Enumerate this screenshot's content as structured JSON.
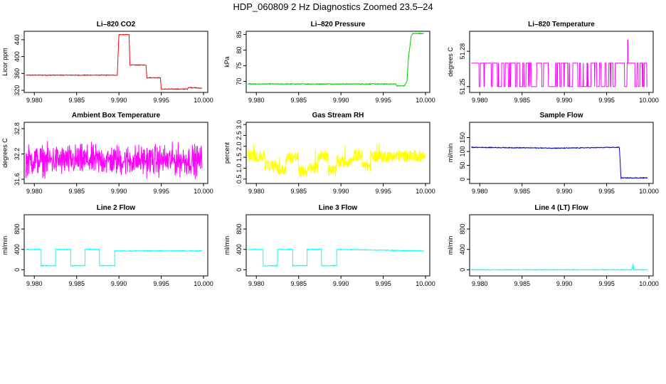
{
  "figure": {
    "title": "HDP_060809  2 Hz Diagnostics Zoomed 23.5–24"
  },
  "chart_data": [
    {
      "type": "line",
      "title": "Li–820 CO2",
      "ylabel": "Licor ppm",
      "color": "#ff0000",
      "xlim": [
        9.9788,
        10.0005
      ],
      "ylim": [
        315,
        460
      ],
      "xticks": [
        "9.980",
        "9.985",
        "9.990",
        "9.995",
        "10.000"
      ],
      "yticks": [
        "320",
        "360",
        "400",
        "440"
      ],
      "segments": [
        [
          9.979,
          356
        ],
        [
          9.9898,
          356
        ],
        [
          9.99,
          452
        ],
        [
          9.9912,
          452
        ],
        [
          9.9913,
          380
        ],
        [
          9.9932,
          380
        ],
        [
          9.9933,
          350
        ],
        [
          9.9949,
          350
        ],
        [
          9.995,
          323
        ],
        [
          9.9981,
          323
        ],
        [
          9.9982,
          327
        ],
        [
          9.9998,
          325
        ]
      ]
    },
    {
      "type": "line",
      "title": "Li–820 Pressure",
      "ylabel": "kPa",
      "color": "#00cc00",
      "xlim": [
        9.9788,
        10.0005
      ],
      "ylim": [
        66.5,
        86
      ],
      "xticks": [
        "9.980",
        "9.985",
        "9.990",
        "9.995",
        "10.000"
      ],
      "yticks": [
        "70",
        "75",
        "80",
        "85"
      ],
      "segments": [
        [
          9.979,
          69.2
        ],
        [
          9.9965,
          69.2
        ],
        [
          9.9966,
          68.6
        ],
        [
          9.9975,
          68.6
        ],
        [
          9.9978,
          70
        ],
        [
          9.998,
          78
        ],
        [
          9.9983,
          84.5
        ],
        [
          9.9985,
          85.3
        ],
        [
          9.9998,
          85.3
        ]
      ]
    },
    {
      "type": "line",
      "title": "Li–820 Temperature",
      "ylabel": "degrees C",
      "color": "#ff00ff",
      "xlim": [
        9.9788,
        10.0005
      ],
      "ylim": [
        51.245,
        51.297
      ],
      "xticks": [
        "9.980",
        "9.985",
        "9.990",
        "9.995",
        "10.000"
      ],
      "yticks": [
        "51.25",
        "51.28"
      ],
      "levels": [
        51.25,
        51.27
      ],
      "spike": [
        9.9975,
        51.29
      ]
    },
    {
      "type": "line",
      "title": "Ambient Box Temperature",
      "ylabel": "degrees C",
      "color": "#ff00ff",
      "xlim": [
        9.9788,
        10.0005
      ],
      "ylim": [
        31.5,
        32.95
      ],
      "xticks": [
        "9.980",
        "9.985",
        "9.990",
        "9.995",
        "10.000"
      ],
      "yticks": [
        "31.6",
        "32.2",
        "32.8"
      ],
      "mean": 32.05,
      "spread": 0.35
    },
    {
      "type": "line",
      "title": "Gas Stream RH",
      "ylabel": "percent",
      "color": "#ffff00",
      "xlim": [
        9.9788,
        10.0005
      ],
      "ylim": [
        0.3,
        3.1
      ],
      "xticks": [
        "9.980",
        "9.985",
        "9.990",
        "9.995",
        "10.000"
      ],
      "yticks": [
        "0.5",
        "1.0",
        "1.5",
        "2.0",
        "2.5",
        "3.0"
      ],
      "levels": [
        [
          9.979,
          1.55
        ],
        [
          9.981,
          1.1
        ],
        [
          9.9825,
          0.9
        ],
        [
          9.9835,
          1.5
        ],
        [
          9.985,
          0.85
        ],
        [
          9.9862,
          1.0
        ],
        [
          9.9873,
          1.6
        ],
        [
          9.9885,
          0.9
        ],
        [
          9.9895,
          1.3
        ],
        [
          9.9915,
          1.6
        ],
        [
          9.9925,
          1.1
        ],
        [
          9.9935,
          1.55
        ],
        [
          10.0,
          1.55
        ]
      ]
    },
    {
      "type": "line",
      "title": "Sample Flow",
      "ylabel": "ml/min",
      "color": "#0000cc",
      "xlim": [
        9.9788,
        10.0005
      ],
      "ylim": [
        -15,
        205
      ],
      "xticks": [
        "9.980",
        "9.985",
        "9.990",
        "9.995",
        "10.000"
      ],
      "yticks": [
        "0",
        "50",
        "100",
        "150"
      ],
      "segments": [
        [
          9.979,
          115
        ],
        [
          9.9895,
          112
        ],
        [
          9.9965,
          115
        ],
        [
          9.9967,
          5
        ],
        [
          9.9998,
          5
        ]
      ]
    },
    {
      "type": "line",
      "title": "Line 2 Flow",
      "ylabel": "ml/min",
      "color": "#00ffff",
      "xlim": [
        9.9788,
        10.0005
      ],
      "ylim": [
        -120,
        1080
      ],
      "xticks": [
        "9.980",
        "9.985",
        "9.990",
        "9.995",
        "10.000"
      ],
      "yticks": [
        "0",
        "400",
        "800"
      ],
      "segments": [
        [
          9.979,
          400
        ],
        [
          9.9808,
          400
        ],
        [
          9.9808,
          80
        ],
        [
          9.9825,
          80
        ],
        [
          9.9825,
          400
        ],
        [
          9.9843,
          400
        ],
        [
          9.9843,
          80
        ],
        [
          9.986,
          80
        ],
        [
          9.986,
          400
        ],
        [
          9.9877,
          400
        ],
        [
          9.9877,
          80
        ],
        [
          9.9895,
          80
        ],
        [
          9.9895,
          370
        ],
        [
          9.9998,
          370
        ]
      ]
    },
    {
      "type": "line",
      "title": "Line 3 Flow",
      "ylabel": "ml/min",
      "color": "#00ffff",
      "xlim": [
        9.9788,
        10.0005
      ],
      "ylim": [
        -120,
        1080
      ],
      "xticks": [
        "9.980",
        "9.985",
        "9.990",
        "9.995",
        "10.000"
      ],
      "yticks": [
        "0",
        "400",
        "800"
      ],
      "segments": [
        [
          9.979,
          400
        ],
        [
          9.9808,
          400
        ],
        [
          9.9808,
          80
        ],
        [
          9.9825,
          80
        ],
        [
          9.9825,
          400
        ],
        [
          9.9843,
          400
        ],
        [
          9.9843,
          80
        ],
        [
          9.986,
          80
        ],
        [
          9.986,
          400
        ],
        [
          9.9877,
          400
        ],
        [
          9.9877,
          80
        ],
        [
          9.9895,
          80
        ],
        [
          9.9895,
          400
        ],
        [
          9.99,
          400
        ],
        [
          9.9998,
          370
        ]
      ]
    },
    {
      "type": "line",
      "title": "Line 4 (LT) Flow",
      "ylabel": "ml/min",
      "color": "#00ffff",
      "xlim": [
        9.9788,
        10.0005
      ],
      "ylim": [
        -120,
        1080
      ],
      "xticks": [
        "9.980",
        "9.985",
        "9.990",
        "9.995",
        "10.000"
      ],
      "yticks": [
        "0",
        "400",
        "800"
      ],
      "segments": [
        [
          9.979,
          0
        ],
        [
          9.998,
          0
        ],
        [
          9.9981,
          120
        ],
        [
          9.9982,
          0
        ],
        [
          9.9998,
          0
        ]
      ]
    }
  ]
}
